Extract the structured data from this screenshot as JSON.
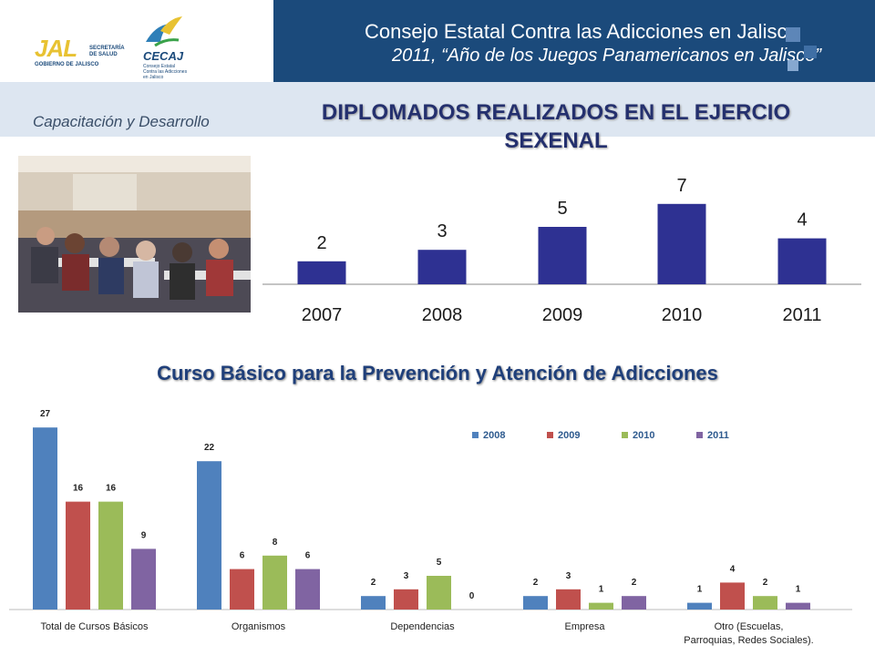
{
  "header": {
    "title": "Consejo Estatal Contra las Adicciones en Jalisco",
    "subtitle": "2011, “Año de los Juegos Panamericanos en Jalisco”",
    "logo_jal": "JAL",
    "logo_jal_sub": "GOBIERNO DE JALISCO",
    "logo_salud": "SECRETARÍA DE SALUD",
    "logo_cecaj": "CECAJ",
    "logo_cecaj_sub": "Consejo Estatal Contra las Adicciones en Jalisco"
  },
  "section_label": "Capacitación y Desarrollo",
  "main_title": "DIPLOMADOS REALIZADOS EN EL EJERCIO SEXENAL",
  "subtitle": "Curso Básico para la Prevención y Atención de Adicciones",
  "colors": {
    "header_bg": "#1b4a7b",
    "bar_top": "#2e3192",
    "s2008": "#4f81bd",
    "s2009": "#c0504d",
    "s2010": "#9bbb59",
    "s2011": "#8064a2"
  },
  "chart_data": [
    {
      "type": "bar",
      "categories": [
        "2007",
        "2008",
        "2009",
        "2010",
        "2011"
      ],
      "values": [
        2,
        3,
        5,
        7,
        4
      ],
      "ylim": [
        0,
        8
      ]
    },
    {
      "type": "bar",
      "categories": [
        "Total de Cursos Básicos",
        "Organismos",
        "Dependencias",
        "Empresa",
        "Otro (Escuelas, Parroquias, Redes Sociales)."
      ],
      "series": [
        {
          "name": "2008",
          "values": [
            27,
            22,
            2,
            2,
            1
          ]
        },
        {
          "name": "2009",
          "values": [
            16,
            6,
            3,
            3,
            4
          ]
        },
        {
          "name": "2010",
          "values": [
            16,
            8,
            5,
            1,
            2
          ]
        },
        {
          "name": "2011",
          "values": [
            9,
            6,
            0,
            2,
            1
          ]
        }
      ],
      "legend": "top-right",
      "ylim": [
        0,
        27
      ]
    }
  ]
}
